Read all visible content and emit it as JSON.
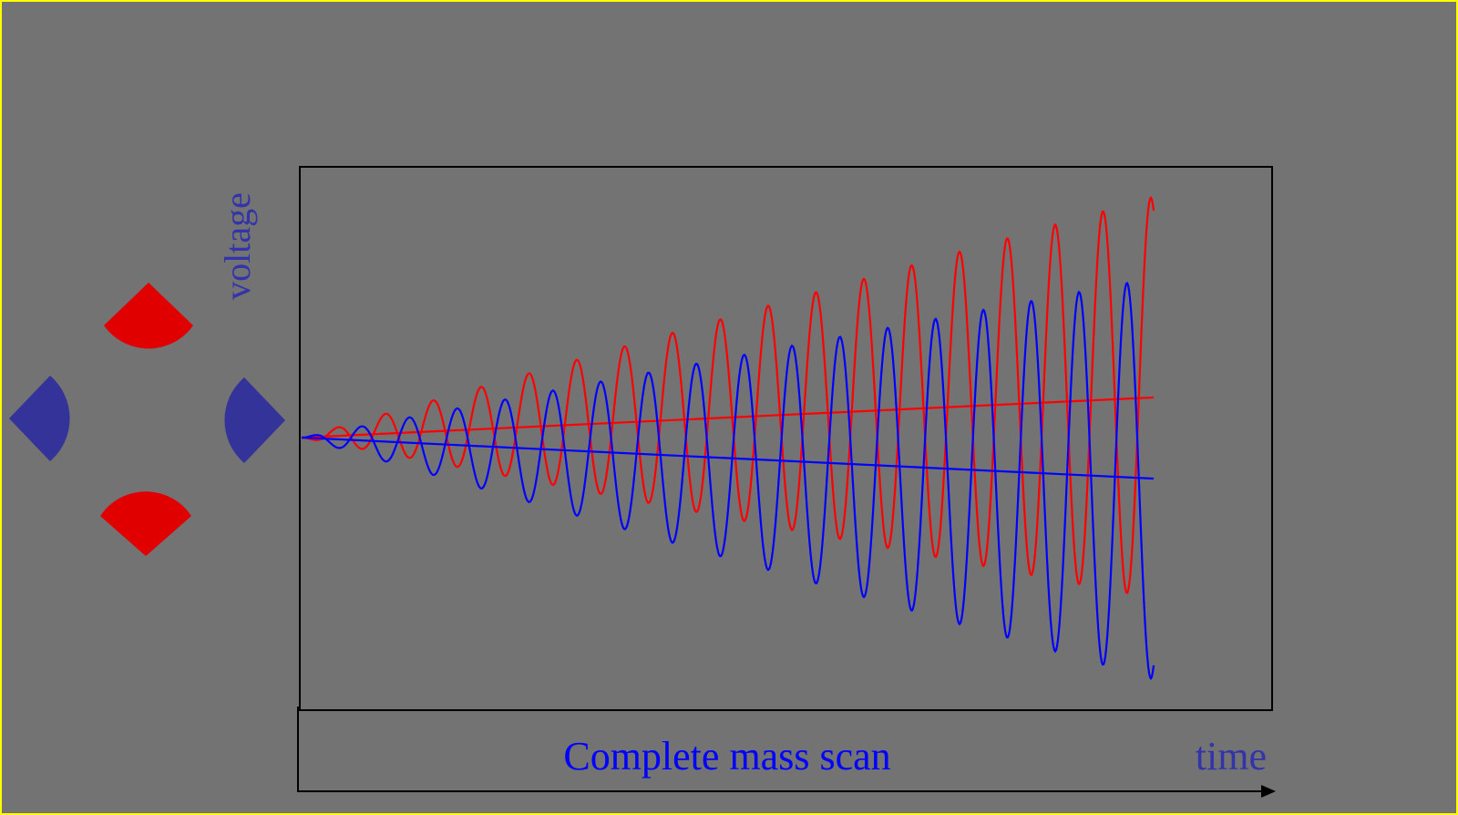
{
  "labels": {
    "y_axis": "voltage",
    "scan": "Complete mass scan",
    "x_axis": "time"
  }
}
